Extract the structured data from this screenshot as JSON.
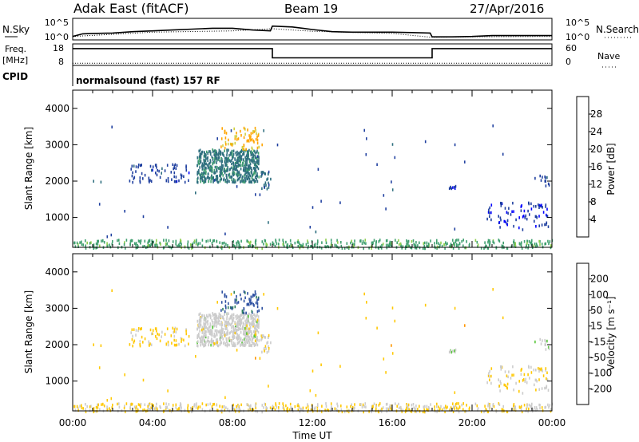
{
  "header": {
    "station": "Adak East (fitACF)",
    "beam": "Beam 19",
    "date": "27/Apr/2016"
  },
  "noise_panel": {
    "left_label": "N.Sky",
    "left_ticks": [
      "10^5",
      "10^0"
    ],
    "right_ticks": [
      "10^5",
      "10^0"
    ],
    "right_label": "N.Search"
  },
  "freq_panel": {
    "left_label_1": "Freq.",
    "left_label_2": "[MHz]",
    "left_ticks": [
      "18",
      "8"
    ],
    "right_ticks": [
      "60",
      "0"
    ],
    "right_label": "Nave"
  },
  "cpid": {
    "label": "CPID",
    "program": "normalsound (fast) 157 RF"
  },
  "colors": {
    "power_scale": [
      "#0000ff",
      "#1f3f9f",
      "#2f6f7f",
      "#3f9f6f",
      "#8fcf4f",
      "#cfcf3f",
      "#ffa500",
      "#ff6f00",
      "#ff0000"
    ],
    "velocity_scale": [
      "#ff0000",
      "#ff5a00",
      "#ff9600",
      "#ffc800",
      "#cccccc",
      "#5ac83c",
      "#2e7f5e",
      "#2c4fa0",
      "#1414c8"
    ]
  },
  "chart_data": [
    {
      "type": "line",
      "name": "noise",
      "series": [
        {
          "name": "N.Sky",
          "style": "solid",
          "x": [
            0,
            0.5,
            1,
            2,
            3,
            4,
            5,
            6,
            7,
            8,
            9,
            9.9,
            10,
            11,
            12,
            13,
            14,
            15,
            16,
            17,
            17.9,
            18,
            19,
            20,
            21,
            22,
            23,
            24
          ],
          "y": [
            0.8,
            1.4,
            1.5,
            1.6,
            1.9,
            2.1,
            2.3,
            2.5,
            2.7,
            2.7,
            2.3,
            2.1,
            3.2,
            3.0,
            2.4,
            1.9,
            1.8,
            1.8,
            1.8,
            1.7,
            1.6,
            0.7,
            0.7,
            0.8,
            1.0,
            1.0,
            1.0,
            1.0
          ]
        },
        {
          "name": "N.Search",
          "style": "dotted",
          "x": [
            0,
            4,
            8,
            10,
            12,
            16,
            18,
            20,
            24
          ],
          "y": [
            0.8,
            1.8,
            2.1,
            2.6,
            2.0,
            1.5,
            0.6,
            0.7,
            0.8
          ]
        }
      ],
      "ylim": [
        0,
        5
      ]
    },
    {
      "type": "line",
      "name": "frequency",
      "series": [
        {
          "name": "Freq.",
          "x": [
            0,
            10,
            10,
            18,
            18,
            24
          ],
          "y": [
            15.8,
            15.8,
            11.5,
            11.5,
            15.8,
            15.8
          ]
        },
        {
          "name": "Nave",
          "style": "dotted",
          "x": [
            0,
            24
          ],
          "y": [
            9,
            9
          ]
        }
      ],
      "ylim": [
        8,
        18
      ]
    },
    {
      "type": "scatter",
      "name": "power",
      "title": "",
      "xlabel": "",
      "ylabel": "Slant Range [km]",
      "xlim": [
        0,
        24
      ],
      "ylim": [
        180,
        4500
      ],
      "yticks": [
        1000,
        2000,
        3000,
        4000
      ],
      "colorbar": {
        "label": "Power [dB]",
        "ticks": [
          "4",
          "8",
          "12",
          "16",
          "20",
          "24",
          "28"
        ],
        "range": [
          0,
          30
        ]
      },
      "clusters": [
        {
          "t": [
            6.2,
            9.3
          ],
          "r": [
            2000,
            2900
          ],
          "v": 9,
          "n": 620
        },
        {
          "t": [
            7.4,
            9.5
          ],
          "r": [
            2900,
            3500
          ],
          "v": 21,
          "n": 70
        },
        {
          "t": [
            2.8,
            5.8
          ],
          "r": [
            2000,
            2500
          ],
          "v": 5,
          "n": 70
        },
        {
          "t": [
            9.4,
            9.9
          ],
          "r": [
            1800,
            2300
          ],
          "v": 8,
          "n": 25
        },
        {
          "t": [
            18.8,
            19.2
          ],
          "r": [
            1750,
            1900
          ],
          "v": 4,
          "n": 8
        },
        {
          "t": [
            20.5,
            23.8
          ],
          "r": [
            700,
            1450
          ],
          "v": 4,
          "n": 80
        },
        {
          "t": [
            23.1,
            23.9
          ],
          "r": [
            1900,
            2200
          ],
          "v": 5,
          "n": 12
        },
        {
          "t": [
            0,
            24
          ],
          "r": [
            185,
            420
          ],
          "v": 12,
          "n": 520
        },
        {
          "t": [
            1,
            22
          ],
          "r": [
            500,
            3600
          ],
          "v": 6,
          "n": 45
        }
      ]
    },
    {
      "type": "scatter",
      "name": "velocity",
      "title": "",
      "xlabel": "Time UT",
      "ylabel": "Slant Range [km]",
      "xlim": [
        0,
        24
      ],
      "ylim": [
        180,
        4500
      ],
      "yticks": [
        1000,
        2000,
        3000,
        4000
      ],
      "xticks": [
        "00:00",
        "04:00",
        "08:00",
        "12:00",
        "16:00",
        "20:00",
        "00:00"
      ],
      "colorbar": {
        "label": "Velocity [m s⁻¹]",
        "ticks": [
          "-200",
          "-100",
          "-50",
          "-15",
          "15",
          "50",
          "100",
          "200"
        ],
        "range": [
          -250,
          250
        ]
      },
      "clusters": [
        {
          "t": [
            6.2,
            9.3
          ],
          "r": [
            2000,
            2900
          ],
          "v": 0,
          "n": 620
        },
        {
          "t": [
            7.4,
            9.5
          ],
          "r": [
            2900,
            3500
          ],
          "v": 160,
          "n": 70
        },
        {
          "t": [
            2.8,
            5.8
          ],
          "r": [
            2000,
            2500
          ],
          "v": -40,
          "n": 70
        },
        {
          "t": [
            9.4,
            9.9
          ],
          "r": [
            1800,
            2300
          ],
          "v": -10,
          "n": 25
        },
        {
          "t": [
            18.8,
            19.2
          ],
          "r": [
            1750,
            1900
          ],
          "v": 20,
          "n": 8
        },
        {
          "t": [
            20.5,
            23.8
          ],
          "r": [
            700,
            1450
          ],
          "v": -20,
          "n": 80
        },
        {
          "t": [
            23.1,
            23.9
          ],
          "r": [
            1900,
            2200
          ],
          "v": 10,
          "n": 12
        },
        {
          "t": [
            0,
            24
          ],
          "r": [
            185,
            420
          ],
          "v": -30,
          "n": 520
        },
        {
          "t": [
            1,
            22
          ],
          "r": [
            500,
            3600
          ],
          "v": -60,
          "n": 45
        }
      ]
    }
  ]
}
